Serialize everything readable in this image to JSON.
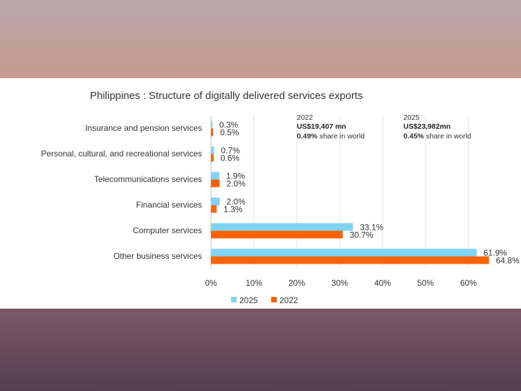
{
  "chart_data": {
    "type": "bar",
    "orientation": "horizontal",
    "title": "Philippines : Structure of digitally delivered services exports",
    "categories": [
      "Insurance and pension services",
      "Personal, cultural, and recreational services",
      "Telecommunications services",
      "Financial services",
      "Computer services",
      "Other business services"
    ],
    "series": [
      {
        "name": "2025",
        "color": "#7fd3f7",
        "values": [
          0.3,
          0.7,
          1.9,
          2.0,
          33.1,
          61.9
        ],
        "labels": [
          "0.3%",
          "0.7%",
          "1.9%",
          "2.0%",
          "33.1%",
          "61.9%"
        ]
      },
      {
        "name": "2022",
        "color": "#ff6200",
        "values": [
          0.5,
          0.6,
          2.0,
          1.3,
          30.7,
          64.8
        ],
        "labels": [
          "0.5%",
          "0.6%",
          "2.0%",
          "1.3%",
          "30.7%",
          "64.8%"
        ]
      }
    ],
    "xlim": [
      0,
      65
    ],
    "xticks": [
      0,
      10,
      20,
      30,
      40,
      50,
      60
    ],
    "xtick_labels": [
      "0%",
      "10%",
      "20%",
      "30%",
      "40%",
      "50%",
      "60%"
    ],
    "grid": true,
    "legend": "bottom-center",
    "annotations": [
      {
        "year": "2022",
        "value": "US$19,407 mn",
        "share_bold": "0.49%",
        "share_text": " share in world"
      },
      {
        "year": "2025",
        "value": "US$23,982mn",
        "share_bold": "0.45%",
        "share_text": " share in world"
      }
    ]
  }
}
